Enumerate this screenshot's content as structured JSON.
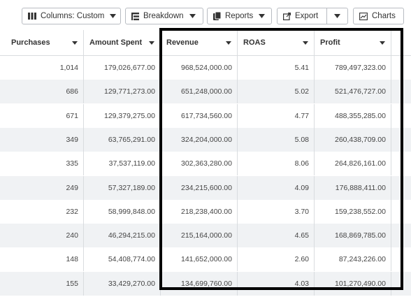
{
  "toolbar": {
    "columns_label": "Columns: Custom",
    "breakdown_label": "Breakdown",
    "reports_label": "Reports",
    "export_label": "Export",
    "charts_label": "Charts"
  },
  "table": {
    "headers": [
      "Purchases",
      "Amount Spent",
      "Revenue",
      "ROAS",
      "Profit"
    ],
    "rows": [
      [
        "1,014",
        "179,026,677.00",
        "968,524,000.00",
        "5.41",
        "789,497,323.00"
      ],
      [
        "686",
        "129,771,273.00",
        "651,248,000.00",
        "5.02",
        "521,476,727.00"
      ],
      [
        "671",
        "129,379,275.00",
        "617,734,560.00",
        "4.77",
        "488,355,285.00"
      ],
      [
        "349",
        "63,765,291.00",
        "324,204,000.00",
        "5.08",
        "260,438,709.00"
      ],
      [
        "335",
        "37,537,119.00",
        "302,363,280.00",
        "8.06",
        "264,826,161.00"
      ],
      [
        "249",
        "57,327,189.00",
        "234,215,600.00",
        "4.09",
        "176,888,411.00"
      ],
      [
        "232",
        "58,999,848.00",
        "218,238,400.00",
        "3.70",
        "159,238,552.00"
      ],
      [
        "240",
        "46,294,215.00",
        "215,164,000.00",
        "4.65",
        "168,869,785.00"
      ],
      [
        "148",
        "54,408,774.00",
        "141,652,000.00",
        "2.60",
        "87,243,226.00"
      ],
      [
        "155",
        "33,429,270.00",
        "134,699,760.00",
        "4.03",
        "101,270,490.00"
      ]
    ]
  },
  "colors": {
    "highlight_border": "#000000",
    "stripe": "#f0f2f4",
    "grid_line": "#d9dcdf"
  }
}
